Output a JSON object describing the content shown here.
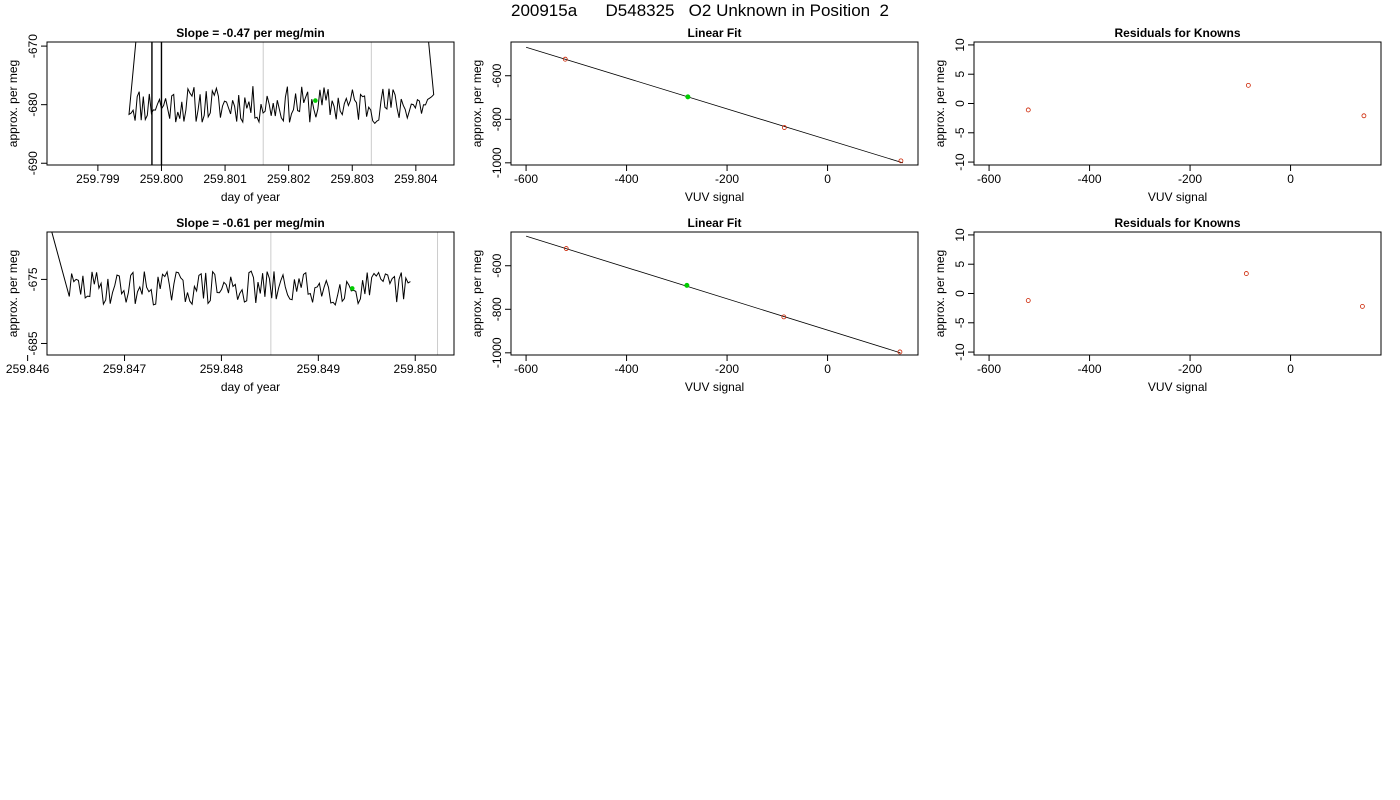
{
  "page_title": "200915a      D548325   O2 Unknown in Position  2",
  "chart_data": [
    {
      "type": "line",
      "title": "Slope =  -0.47  per meg/min",
      "xlabel": "day of year",
      "ylabel": "approx. per meg",
      "xlim": [
        259.7982,
        259.8046
      ],
      "ylim": [
        -690.3,
        -669.3
      ],
      "xticks": [
        259.799,
        259.8,
        259.801,
        259.802,
        259.803,
        259.804
      ],
      "xtick_labels": [
        "259.799",
        "259.800",
        "259.801",
        "259.802",
        "259.803",
        "259.804"
      ],
      "yticks": [
        -690,
        -680,
        -670
      ],
      "ytick_labels": [
        "-690",
        "-680",
        "-670"
      ],
      "vlines": [
        259.8016,
        259.8033
      ],
      "vline_color": "#cccccc",
      "trace": {
        "x_start": 259.79949,
        "x_end": 259.80428,
        "center": -680.0,
        "spread": 2.0,
        "seed": 11,
        "rise_start_x": 259.7996,
        "rise_start_y": -669.0,
        "rise_end_x": 259.8042,
        "rise_end_y": -669.3,
        "spike_x": [
          259.79985,
          259.8
        ],
        "spike_y": [
          -669.3,
          -690.3
        ]
      },
      "marker": {
        "x": 259.80242,
        "y": -679.3,
        "color": "#00cc00"
      },
      "line_color": "#000000"
    },
    {
      "type": "scatter",
      "title": "Linear Fit",
      "xlabel": "VUV signal",
      "ylabel": "approx. per meg",
      "xlim": [
        -630,
        180
      ],
      "ylim": [
        -1010,
        -445
      ],
      "xticks": [
        -600,
        -400,
        -200,
        0
      ],
      "xtick_labels": [
        "-600",
        "-400",
        "-200",
        "0"
      ],
      "yticks": [
        -1000,
        -800,
        -600
      ],
      "ytick_labels": [
        "-1000",
        "-800",
        "-600"
      ],
      "fit_line": {
        "x": [
          -600,
          150
        ],
        "y": [
          -469,
          -1000
        ]
      },
      "points": [
        {
          "x": -522,
          "y": -524,
          "color": "#cc2200"
        },
        {
          "x": -86,
          "y": -838,
          "color": "#cc2200"
        },
        {
          "x": 146,
          "y": -991,
          "color": "#cc2200"
        }
      ],
      "unknown": {
        "x": -278,
        "y": -697,
        "color": "#00cc00"
      }
    },
    {
      "type": "scatter",
      "title": "Residuals for Knowns",
      "xlabel": "VUV signal",
      "ylabel": "approx. per meg",
      "xlim": [
        -630,
        180
      ],
      "ylim": [
        -10.5,
        10.5
      ],
      "xticks": [
        -600,
        -400,
        -200,
        0
      ],
      "xtick_labels": [
        "-600",
        "-400",
        "-200",
        "0"
      ],
      "yticks": [
        -10,
        -5,
        0,
        5,
        10
      ],
      "ytick_labels": [
        "-10",
        "-5",
        "0",
        "5",
        "10"
      ],
      "points": [
        {
          "x": -522,
          "y": -1.1,
          "color": "#cc2200"
        },
        {
          "x": -84,
          "y": 3.1,
          "color": "#cc2200"
        },
        {
          "x": 146,
          "y": -2.1,
          "color": "#cc2200"
        }
      ]
    },
    {
      "type": "line",
      "title": "Slope =  -0.61  per meg/min",
      "xlabel": "day of year",
      "ylabel": "approx. per meg",
      "xlim": [
        259.8462,
        259.8504
      ],
      "ylim": [
        -686.8,
        -667.6
      ],
      "xticks": [
        259.846,
        259.847,
        259.848,
        259.849,
        259.85
      ],
      "xtick_labels": [
        "259.846",
        "259.847",
        "259.848",
        "259.849",
        "259.850"
      ],
      "yticks": [
        -685,
        -675
      ],
      "ytick_labels": [
        "-685",
        "-675"
      ],
      "vlines": [
        259.84851,
        259.85023
      ],
      "vline_color": "#cccccc",
      "trace": {
        "x_start": 259.84643,
        "x_end": 259.84995,
        "center": -676.3,
        "spread": 1.7,
        "seed": 29,
        "rise_start_x": 259.84625,
        "rise_start_y": -667.6,
        "rise_end_x": null,
        "rise_end_y": null,
        "spike_x": [],
        "spike_y": []
      },
      "marker": {
        "x": 259.84935,
        "y": -676.4,
        "color": "#00cc00"
      },
      "line_color": "#000000"
    },
    {
      "type": "scatter",
      "title": "Linear Fit",
      "xlabel": "VUV signal",
      "ylabel": "approx. per meg",
      "xlim": [
        -630,
        180
      ],
      "ylim": [
        -1010,
        -445
      ],
      "xticks": [
        -600,
        -400,
        -200,
        0
      ],
      "xtick_labels": [
        "-600",
        "-400",
        "-200",
        "0"
      ],
      "yticks": [
        -1000,
        -800,
        -600
      ],
      "ytick_labels": [
        "-1000",
        "-800",
        "-600"
      ],
      "fit_line": {
        "x": [
          -600,
          145
        ],
        "y": [
          -464,
          -1000
        ]
      },
      "points": [
        {
          "x": -520,
          "y": -521,
          "color": "#cc2200"
        },
        {
          "x": -87,
          "y": -835,
          "color": "#cc2200"
        },
        {
          "x": 144,
          "y": -996,
          "color": "#cc2200"
        }
      ],
      "unknown": {
        "x": -280,
        "y": -690,
        "color": "#00cc00"
      }
    },
    {
      "type": "scatter",
      "title": "Residuals for Knowns",
      "xlabel": "VUV signal",
      "ylabel": "approx. per meg",
      "xlim": [
        -630,
        180
      ],
      "ylim": [
        -10.5,
        10.5
      ],
      "xticks": [
        -600,
        -400,
        -200,
        0
      ],
      "xtick_labels": [
        "-600",
        "-400",
        "-200",
        "0"
      ],
      "yticks": [
        -10,
        -5,
        0,
        5,
        10
      ],
      "ytick_labels": [
        "-10",
        "-5",
        "0",
        "5",
        "10"
      ],
      "points": [
        {
          "x": -522,
          "y": -1.2,
          "color": "#cc2200"
        },
        {
          "x": -88,
          "y": 3.4,
          "color": "#cc2200"
        },
        {
          "x": 143,
          "y": -2.2,
          "color": "#cc2200"
        }
      ]
    }
  ]
}
